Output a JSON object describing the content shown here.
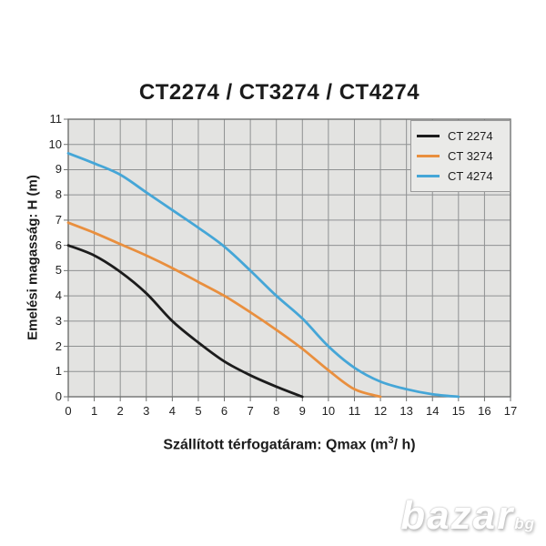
{
  "colors": {
    "plot_bg": "#e3e3e1",
    "grid": "#8f9192",
    "plot_border": "#6f7170",
    "legend_bg": "#eaeae8",
    "legend_border": "#9a9a9a",
    "text": "#1b1b1b",
    "series_black": "#1c1c1c",
    "series_orange": "#e98f3e",
    "series_blue": "#45a6d7"
  },
  "watermark": {
    "text": "bazar",
    "suffix": "bg"
  },
  "chart_data": {
    "type": "line",
    "title": "CT2274 / CT3274 / CT4274",
    "xlabel": "Szállított térfogatáram: Qmax (m³/ h)",
    "xlabel_prefix": "Szállított térfogatáram: Qmax (m",
    "xlabel_sup": "3",
    "xlabel_suffix": "/ h)",
    "ylabel": "Emelési magasság: H (m)",
    "xlim": [
      0,
      17
    ],
    "ylim": [
      0,
      11
    ],
    "xticks": [
      "0",
      "1",
      "2",
      "3",
      "4",
      "5",
      "6",
      "7",
      "8",
      "9",
      "10",
      "11",
      "12",
      "13",
      "14",
      "15",
      "16",
      "17"
    ],
    "yticks": [
      "0",
      "1",
      "2",
      "3",
      "4",
      "5",
      "6",
      "7",
      "8",
      "9",
      "10",
      "11"
    ],
    "grid": true,
    "legend_position": "top-right",
    "series": [
      {
        "name": "CT 2274",
        "color": "#1c1c1c",
        "points": [
          [
            0,
            6.0
          ],
          [
            1,
            5.6
          ],
          [
            2,
            4.95
          ],
          [
            3,
            4.1
          ],
          [
            4,
            3.0
          ],
          [
            5,
            2.15
          ],
          [
            6,
            1.4
          ],
          [
            7,
            0.85
          ],
          [
            8,
            0.4
          ],
          [
            9,
            0
          ]
        ]
      },
      {
        "name": "CT 3274",
        "color": "#e98f3e",
        "points": [
          [
            0,
            6.9
          ],
          [
            1,
            6.5
          ],
          [
            2,
            6.05
          ],
          [
            3,
            5.6
          ],
          [
            4,
            5.1
          ],
          [
            5,
            4.55
          ],
          [
            6,
            4.0
          ],
          [
            7,
            3.35
          ],
          [
            8,
            2.65
          ],
          [
            9,
            1.9
          ],
          [
            10,
            1.05
          ],
          [
            11,
            0.3
          ],
          [
            12,
            0
          ]
        ]
      },
      {
        "name": "CT 4274",
        "color": "#45a6d7",
        "points": [
          [
            0,
            9.65
          ],
          [
            1,
            9.25
          ],
          [
            2,
            8.8
          ],
          [
            3,
            8.1
          ],
          [
            4,
            7.4
          ],
          [
            5,
            6.7
          ],
          [
            6,
            5.95
          ],
          [
            7,
            5.0
          ],
          [
            8,
            4.0
          ],
          [
            9,
            3.1
          ],
          [
            10,
            2.0
          ],
          [
            11,
            1.15
          ],
          [
            12,
            0.6
          ],
          [
            13,
            0.3
          ],
          [
            14,
            0.1
          ],
          [
            15,
            0
          ]
        ]
      }
    ]
  }
}
